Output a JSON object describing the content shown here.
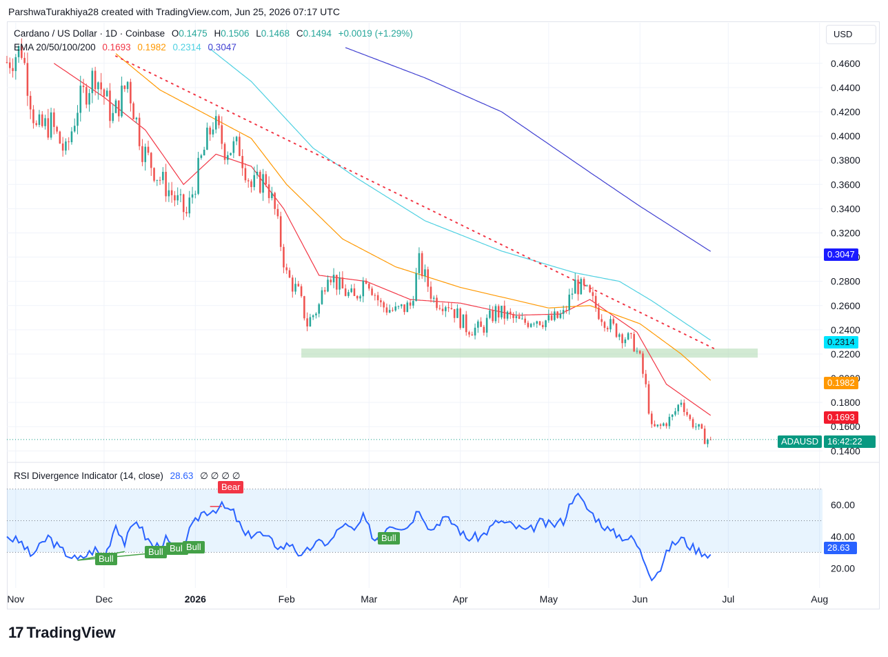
{
  "attribution": "ParshwaTurakhiya28 created with TradingView.com, Jun 25, 2026 07:17 UTC",
  "legend": {
    "symbol": "Cardano / US Dollar · 1D · Coinbase",
    "ohlc": {
      "o_label": "O",
      "o": "0.1475",
      "h_label": "H",
      "h": "0.1506",
      "l_label": "L",
      "l": "0.1468",
      "c_label": "C",
      "c": "0.1494",
      "change": "+0.0019 (+1.29%)"
    },
    "ema_label": "EMA 20/50/100/200",
    "ema_values": [
      "0.1693",
      "0.1982",
      "0.2314",
      "0.3047"
    ]
  },
  "currency": "USD",
  "colors": {
    "up": "#26a69a",
    "down": "#ef5350",
    "ema20": "#f23645",
    "ema50": "#ff9800",
    "ema100": "#4dd0e1",
    "ema200": "#3f3fd1",
    "rsi": "#2962ff",
    "bull": "#43a047",
    "bear": "#f23645",
    "support_zone": "#a5d6a7",
    "trendline": "#f23645"
  },
  "price_tags": {
    "ema200": "0.3047",
    "ema100": "0.2314",
    "ema50": "0.1982",
    "ema20": "0.1693",
    "symbol": "ADAUSD",
    "countdown": "16:42:22"
  },
  "rsi": {
    "label": "RSI Divergence Indicator (14, close)",
    "value": "28.63",
    "placeholders": "∅ ∅ ∅ ∅",
    "last_tag": "28.63",
    "divergence_labels": [
      {
        "text": "Bull",
        "date": "2025-11-22"
      },
      {
        "text": "Bull",
        "date": "2025-12-08"
      },
      {
        "text": "Bull",
        "date": "2025-12-20"
      },
      {
        "text": "Bull",
        "date": "2025-12-26"
      },
      {
        "text": "Bear",
        "date": "2026-01-10"
      },
      {
        "text": "Bull",
        "date": "2026-03-03"
      }
    ]
  },
  "footer_brand": "TradingView",
  "chart_data": {
    "type": "candlestick",
    "title": "Cardano / US Dollar · 1D · Coinbase",
    "x_range": [
      "2025-10-29",
      "2026-08-02"
    ],
    "x_tick_labels": [
      "Nov",
      "Dec",
      "2026",
      "Feb",
      "Mar",
      "Apr",
      "May",
      "Jun",
      "Jul",
      "Aug"
    ],
    "x_tick_dates": [
      "2025-11-01",
      "2025-12-01",
      "2026-01-01",
      "2026-02-01",
      "2026-03-01",
      "2026-04-01",
      "2026-05-01",
      "2026-06-01",
      "2026-07-01",
      "2026-08-01"
    ],
    "y_ticks": [
      "0.1400",
      "0.1600",
      "0.1800",
      "0.2000",
      "0.2200",
      "0.2400",
      "0.2600",
      "0.2800",
      "0.3000",
      "0.3200",
      "0.3400",
      "0.3600",
      "0.3800",
      "0.4000",
      "0.4200",
      "0.4400",
      "0.4600"
    ],
    "y_range": [
      0.1305,
      0.4935
    ],
    "last_close": 0.1494,
    "close_anchors": [
      [
        "2025-10-29",
        0.461
      ],
      [
        "2025-11-03",
        0.472
      ],
      [
        "2025-11-08",
        0.405
      ],
      [
        "2025-11-13",
        0.41
      ],
      [
        "2025-11-18",
        0.385
      ],
      [
        "2025-11-22",
        0.425
      ],
      [
        "2025-11-28",
        0.452
      ],
      [
        "2025-12-04",
        0.415
      ],
      [
        "2025-12-09",
        0.445
      ],
      [
        "2025-12-14",
        0.39
      ],
      [
        "2025-12-19",
        0.368
      ],
      [
        "2025-12-24",
        0.352
      ],
      [
        "2025-12-29",
        0.335
      ],
      [
        "2026-01-03",
        0.38
      ],
      [
        "2026-01-07",
        0.412
      ],
      [
        "2026-01-11",
        0.39
      ],
      [
        "2026-01-16",
        0.39
      ],
      [
        "2026-01-20",
        0.358
      ],
      [
        "2026-01-25",
        0.365
      ],
      [
        "2026-01-28",
        0.338
      ],
      [
        "2026-02-01",
        0.285
      ],
      [
        "2026-02-05",
        0.27
      ],
      [
        "2026-02-08",
        0.245
      ],
      [
        "2026-02-12",
        0.26
      ],
      [
        "2026-02-15",
        0.29
      ],
      [
        "2026-02-19",
        0.275
      ],
      [
        "2026-02-24",
        0.265
      ],
      [
        "2026-02-28",
        0.285
      ],
      [
        "2026-03-05",
        0.26
      ],
      [
        "2026-03-10",
        0.255
      ],
      [
        "2026-03-15",
        0.26
      ],
      [
        "2026-03-18",
        0.295
      ],
      [
        "2026-03-23",
        0.265
      ],
      [
        "2026-03-28",
        0.262
      ],
      [
        "2026-04-03",
        0.242
      ],
      [
        "2026-04-08",
        0.24
      ],
      [
        "2026-04-13",
        0.255
      ],
      [
        "2026-04-18",
        0.25
      ],
      [
        "2026-04-22",
        0.245
      ],
      [
        "2026-04-26",
        0.25
      ],
      [
        "2026-05-01",
        0.247
      ],
      [
        "2026-05-06",
        0.252
      ],
      [
        "2026-05-10",
        0.278
      ],
      [
        "2026-05-14",
        0.27
      ],
      [
        "2026-05-18",
        0.255
      ],
      [
        "2026-05-22",
        0.243
      ],
      [
        "2026-05-26",
        0.236
      ],
      [
        "2026-05-30",
        0.228
      ],
      [
        "2026-06-01",
        0.215
      ],
      [
        "2026-06-03",
        0.192
      ],
      [
        "2026-06-05",
        0.158
      ],
      [
        "2026-06-08",
        0.16
      ],
      [
        "2026-06-12",
        0.168
      ],
      [
        "2026-06-15",
        0.182
      ],
      [
        "2026-06-18",
        0.165
      ],
      [
        "2026-06-21",
        0.158
      ],
      [
        "2026-06-23",
        0.15
      ],
      [
        "2026-06-25",
        0.1494
      ]
    ],
    "ema_series": [
      {
        "name": "EMA 20",
        "anchors": [
          [
            "2025-11-14",
            0.46
          ],
          [
            "2025-12-01",
            0.432
          ],
          [
            "2025-12-15",
            0.405
          ],
          [
            "2025-12-28",
            0.36
          ],
          [
            "2026-01-08",
            0.385
          ],
          [
            "2026-01-20",
            0.375
          ],
          [
            "2026-01-31",
            0.34
          ],
          [
            "2026-02-12",
            0.285
          ],
          [
            "2026-02-28",
            0.28
          ],
          [
            "2026-03-15",
            0.265
          ],
          [
            "2026-04-01",
            0.262
          ],
          [
            "2026-04-20",
            0.252
          ],
          [
            "2026-05-05",
            0.253
          ],
          [
            "2026-05-15",
            0.265
          ],
          [
            "2026-05-31",
            0.238
          ],
          [
            "2026-06-10",
            0.195
          ],
          [
            "2026-06-25",
            0.1693
          ]
        ]
      },
      {
        "name": "EMA 50",
        "anchors": [
          [
            "2025-12-05",
            0.468
          ],
          [
            "2025-12-20",
            0.438
          ],
          [
            "2026-01-03",
            0.42
          ],
          [
            "2026-01-20",
            0.398
          ],
          [
            "2026-02-01",
            0.36
          ],
          [
            "2026-02-20",
            0.315
          ],
          [
            "2026-03-10",
            0.292
          ],
          [
            "2026-04-01",
            0.275
          ],
          [
            "2026-05-01",
            0.258
          ],
          [
            "2026-05-15",
            0.26
          ],
          [
            "2026-06-01",
            0.245
          ],
          [
            "2026-06-15",
            0.22
          ],
          [
            "2026-06-25",
            0.1982
          ]
        ]
      },
      {
        "name": "EMA 100",
        "anchors": [
          [
            "2026-01-06",
            0.472
          ],
          [
            "2026-01-20",
            0.445
          ],
          [
            "2026-02-10",
            0.39
          ],
          [
            "2026-02-25",
            0.365
          ],
          [
            "2026-03-20",
            0.33
          ],
          [
            "2026-04-15",
            0.305
          ],
          [
            "2026-05-10",
            0.287
          ],
          [
            "2026-05-25",
            0.28
          ],
          [
            "2026-06-05",
            0.264
          ],
          [
            "2026-06-25",
            0.2314
          ]
        ]
      },
      {
        "name": "EMA 200",
        "anchors": [
          [
            "2026-02-21",
            0.473
          ],
          [
            "2026-03-20",
            0.448
          ],
          [
            "2026-04-15",
            0.42
          ],
          [
            "2026-05-15",
            0.37
          ],
          [
            "2026-06-01",
            0.342
          ],
          [
            "2026-06-25",
            0.3047
          ]
        ]
      }
    ],
    "trendline": {
      "from": [
        "2025-12-05",
        0.466
      ],
      "to": [
        "2026-06-27",
        0.2235
      ]
    },
    "support_zone": {
      "from": "2026-02-06",
      "to": "2026-07-11",
      "low": 0.217,
      "high": 0.2245
    },
    "rsi_panel": {
      "type": "line",
      "y_ticks": [
        "20.00",
        "40.00",
        "60.00"
      ],
      "y_range": [
        7.5,
        82.5
      ],
      "band": [
        30,
        70
      ],
      "midline": 50,
      "last": 28.63,
      "anchors": [
        [
          "2025-10-29",
          40
        ],
        [
          "2025-11-03",
          36
        ],
        [
          "2025-11-06",
          28
        ],
        [
          "2025-11-09",
          33
        ],
        [
          "2025-11-12",
          40
        ],
        [
          "2025-11-16",
          32
        ],
        [
          "2025-11-22",
          25
        ],
        [
          "2025-11-28",
          32
        ],
        [
          "2025-12-01",
          26
        ],
        [
          "2025-12-05",
          48
        ],
        [
          "2025-12-08",
          36
        ],
        [
          "2025-12-12",
          51
        ],
        [
          "2025-12-15",
          40
        ],
        [
          "2025-12-18",
          33
        ],
        [
          "2025-12-22",
          38
        ],
        [
          "2025-12-26",
          29
        ],
        [
          "2025-12-30",
          43
        ],
        [
          "2026-01-03",
          55
        ],
        [
          "2026-01-07",
          57
        ],
        [
          "2026-01-10",
          59
        ],
        [
          "2026-01-14",
          55
        ],
        [
          "2026-01-18",
          40
        ],
        [
          "2026-01-22",
          43
        ],
        [
          "2026-01-26",
          38
        ],
        [
          "2026-01-30",
          33
        ],
        [
          "2026-02-03",
          36
        ],
        [
          "2026-02-06",
          26
        ],
        [
          "2026-02-10",
          35
        ],
        [
          "2026-02-16",
          37
        ],
        [
          "2026-02-20",
          48
        ],
        [
          "2026-02-24",
          43
        ],
        [
          "2026-02-27",
          52
        ],
        [
          "2026-03-03",
          38
        ],
        [
          "2026-03-08",
          48
        ],
        [
          "2026-03-14",
          46
        ],
        [
          "2026-03-18",
          58
        ],
        [
          "2026-03-22",
          44
        ],
        [
          "2026-03-26",
          52
        ],
        [
          "2026-03-30",
          48
        ],
        [
          "2026-04-03",
          39
        ],
        [
          "2026-04-08",
          40
        ],
        [
          "2026-04-14",
          50
        ],
        [
          "2026-04-20",
          46
        ],
        [
          "2026-04-24",
          43
        ],
        [
          "2026-04-28",
          49
        ],
        [
          "2026-05-02",
          47
        ],
        [
          "2026-05-06",
          50
        ],
        [
          "2026-05-10",
          68
        ],
        [
          "2026-05-14",
          58
        ],
        [
          "2026-05-18",
          50
        ],
        [
          "2026-05-22",
          43
        ],
        [
          "2026-05-26",
          40
        ],
        [
          "2026-05-30",
          38
        ],
        [
          "2026-06-02",
          27
        ],
        [
          "2026-06-05",
          15
        ],
        [
          "2026-06-08",
          20
        ],
        [
          "2026-06-11",
          33
        ],
        [
          "2026-06-15",
          39
        ],
        [
          "2026-06-18",
          34
        ],
        [
          "2026-06-21",
          31
        ],
        [
          "2026-06-25",
          28.63
        ]
      ],
      "divergence_lines": [
        {
          "kind": "bull",
          "from": [
            "2025-11-22",
            25
          ],
          "to": [
            "2025-12-08",
            30.5
          ]
        },
        {
          "kind": "bull",
          "from": [
            "2025-11-22",
            25
          ],
          "to": [
            "2025-12-26",
            31
          ]
        },
        {
          "kind": "bear",
          "from": [
            "2026-01-06",
            59
          ],
          "to": [
            "2026-01-10",
            59
          ]
        },
        {
          "kind": "bull",
          "from": [
            "2026-03-03",
            38
          ],
          "to": [
            "2026-03-10",
            39
          ]
        }
      ]
    }
  }
}
